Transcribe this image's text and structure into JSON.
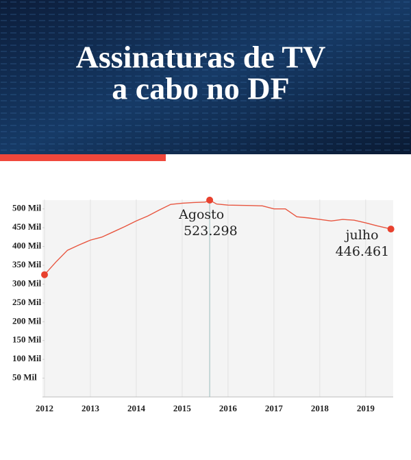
{
  "chart_data": {
    "type": "line",
    "title_lines": [
      "Assinaturas de TV",
      "a cabo no DF"
    ],
    "x": [
      2012.0,
      2012.25,
      2012.5,
      2012.75,
      2013.0,
      2013.25,
      2013.5,
      2013.75,
      2014.0,
      2014.25,
      2014.5,
      2014.75,
      2015.0,
      2015.25,
      2015.5,
      2015.6,
      2015.75,
      2016.0,
      2016.5,
      2016.75,
      2017.0,
      2017.25,
      2017.5,
      2017.75,
      2018.0,
      2018.25,
      2018.5,
      2018.75,
      2019.0,
      2019.25,
      2019.55
    ],
    "series": [
      {
        "color": "#e8553f",
        "values": [
          325,
          359,
          390,
          404,
          417,
          425,
          439,
          453,
          468,
          481,
          497,
          512,
          515,
          517,
          518,
          523.298,
          513,
          510,
          509,
          508,
          500,
          500,
          479,
          476,
          472,
          468,
          472,
          470,
          463,
          455,
          446.461
        ]
      }
    ],
    "annotations": [
      {
        "text": "Agosto",
        "label": "523.298"
      },
      {
        "text": "julho",
        "label": "446.461"
      }
    ],
    "xlim": [
      2012,
      2019.6
    ],
    "xticks": [
      2012,
      2013,
      2014,
      2015,
      2016,
      2017,
      2018,
      2019
    ],
    "ylim": [
      0,
      525
    ],
    "yticks": [
      {
        "value": 50,
        "label": "50 Mil"
      },
      {
        "value": 100,
        "label": "100 Mil"
      },
      {
        "value": 150,
        "label": "150 Mil"
      },
      {
        "value": 200,
        "label": "200 Mil"
      },
      {
        "value": 250,
        "label": "250 Mil"
      },
      {
        "value": 300,
        "label": "300 Mil"
      },
      {
        "value": 350,
        "label": "350 Mil"
      },
      {
        "value": 400,
        "label": "400 Mil"
      },
      {
        "value": 450,
        "label": "450 Mil"
      },
      {
        "value": 500,
        "label": "500 Mil"
      }
    ],
    "grid": true,
    "marker_color": "#e8412e"
  }
}
